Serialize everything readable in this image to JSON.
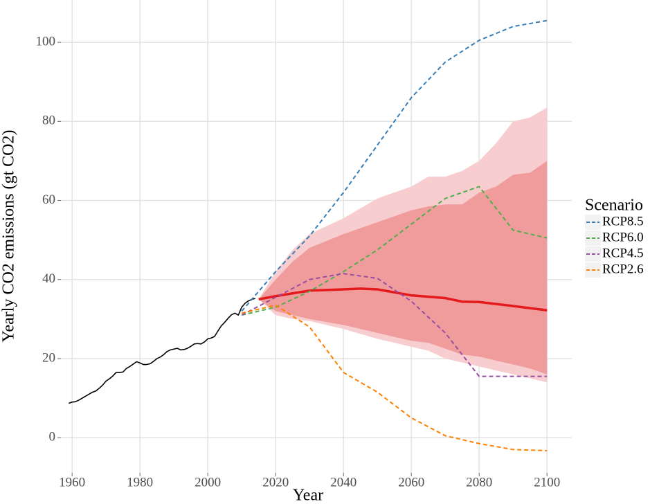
{
  "chart_data": {
    "type": "line",
    "x_label": "Year",
    "y_label": "Yearly CO2 emissions (gt CO2)",
    "xlim": [
      1956.7,
      2107.3
    ],
    "ylim": [
      -8.9,
      110.7
    ],
    "xticks": [
      1960,
      1980,
      2000,
      2020,
      2040,
      2060,
      2080,
      2100
    ],
    "yticks": [
      0,
      20,
      40,
      60,
      80,
      100
    ],
    "grid": true,
    "legend_title": "Scenario",
    "legend_position": "right",
    "bands": [
      {
        "color": "#f7cdcf",
        "x": [
          2015,
          2020,
          2025,
          2030,
          2040,
          2050,
          2060,
          2065,
          2070,
          2075,
          2080,
          2085,
          2090,
          2095,
          2100
        ],
        "upper": [
          35,
          42,
          47.5,
          51.5,
          55.5,
          60.5,
          63.5,
          66,
          66,
          67.5,
          70,
          74.5,
          80,
          81,
          83.5
        ],
        "lower": [
          35,
          31,
          30,
          29.5,
          27.5,
          25,
          23,
          22,
          20,
          19,
          18,
          17,
          16,
          15,
          14
        ]
      },
      {
        "color": "#f09c9c",
        "x": [
          2015,
          2020,
          2025,
          2030,
          2040,
          2050,
          2060,
          2065,
          2070,
          2075,
          2080,
          2085,
          2090,
          2095,
          2100
        ],
        "upper": [
          35,
          40,
          44.5,
          48,
          51.5,
          54.5,
          57.5,
          58.5,
          59,
          59,
          62,
          63.5,
          66.5,
          67,
          70
        ],
        "lower": [
          35,
          32,
          31,
          30,
          28.5,
          26.5,
          24.5,
          24,
          22.5,
          21,
          20.5,
          19.5,
          18.5,
          17.5,
          16
        ]
      }
    ],
    "history": {
      "color": "#000000",
      "x": [
        1959,
        1960,
        1961,
        1962,
        1963,
        1964,
        1965,
        1966,
        1967,
        1968,
        1969,
        1970,
        1971,
        1972,
        1973,
        1974,
        1975,
        1976,
        1977,
        1978,
        1979,
        1980,
        1981,
        1982,
        1983,
        1984,
        1985,
        1986,
        1987,
        1988,
        1989,
        1990,
        1991,
        1992,
        1993,
        1994,
        1995,
        1996,
        1997,
        1998,
        1999,
        2000,
        2001,
        2002,
        2003,
        2004,
        2005,
        2006,
        2007,
        2008,
        2009,
        2010,
        2011,
        2012,
        2013,
        2014
      ],
      "values": [
        8.7,
        9.0,
        9.1,
        9.5,
        10.0,
        10.5,
        11.0,
        11.5,
        11.8,
        12.5,
        13.3,
        14.3,
        14.9,
        15.6,
        16.5,
        16.5,
        16.6,
        17.5,
        18.0,
        18.6,
        19.2,
        18.9,
        18.5,
        18.5,
        18.7,
        19.3,
        20.0,
        20.4,
        21.0,
        21.8,
        22.2,
        22.4,
        22.6,
        22.2,
        22.3,
        22.6,
        23.1,
        23.7,
        23.8,
        23.7,
        24.2,
        25.0,
        25.2,
        25.6,
        27.0,
        28.3,
        29.2,
        30.2,
        31.1,
        31.5,
        31.0,
        33.0,
        34.0,
        34.6,
        35.0,
        35.2
      ]
    },
    "median": {
      "color": "#e41a1c",
      "x": [
        2015,
        2020,
        2030,
        2040,
        2045,
        2050,
        2060,
        2070,
        2075,
        2080,
        2090,
        2100
      ],
      "values": [
        35,
        35.8,
        37.2,
        37.5,
        37.7,
        37.5,
        36,
        35.3,
        34.4,
        34.3,
        33.3,
        32.2
      ]
    },
    "series": [
      {
        "name": "RCP8.5",
        "color": "#377eb8",
        "x": [
          2010,
          2020,
          2030,
          2040,
          2050,
          2060,
          2070,
          2080,
          2090,
          2100
        ],
        "values": [
          32,
          42,
          51,
          62,
          74,
          86,
          95,
          100.5,
          104,
          105.5
        ]
      },
      {
        "name": "RCP6.0",
        "color": "#4daf4a",
        "x": [
          2010,
          2020,
          2030,
          2040,
          2050,
          2060,
          2070,
          2080,
          2090,
          2100
        ],
        "values": [
          31,
          33,
          37,
          42,
          47.5,
          54,
          60.5,
          63.5,
          52.5,
          50.5
        ]
      },
      {
        "name": "RCP4.5",
        "color": "#984ea3",
        "x": [
          2010,
          2020,
          2030,
          2040,
          2050,
          2060,
          2070,
          2080,
          2090,
          2100
        ],
        "values": [
          31,
          35.5,
          40,
          41.5,
          40.3,
          34.5,
          26.5,
          15.5,
          15.5,
          15.5
        ]
      },
      {
        "name": "RCP2.6",
        "color": "#ff7f00",
        "x": [
          2010,
          2020,
          2030,
          2040,
          2050,
          2060,
          2070,
          2080,
          2090,
          2100
        ],
        "values": [
          31.5,
          33.5,
          28,
          16.5,
          11.5,
          5,
          0.5,
          -1.5,
          -3,
          -3.3
        ]
      }
    ]
  }
}
